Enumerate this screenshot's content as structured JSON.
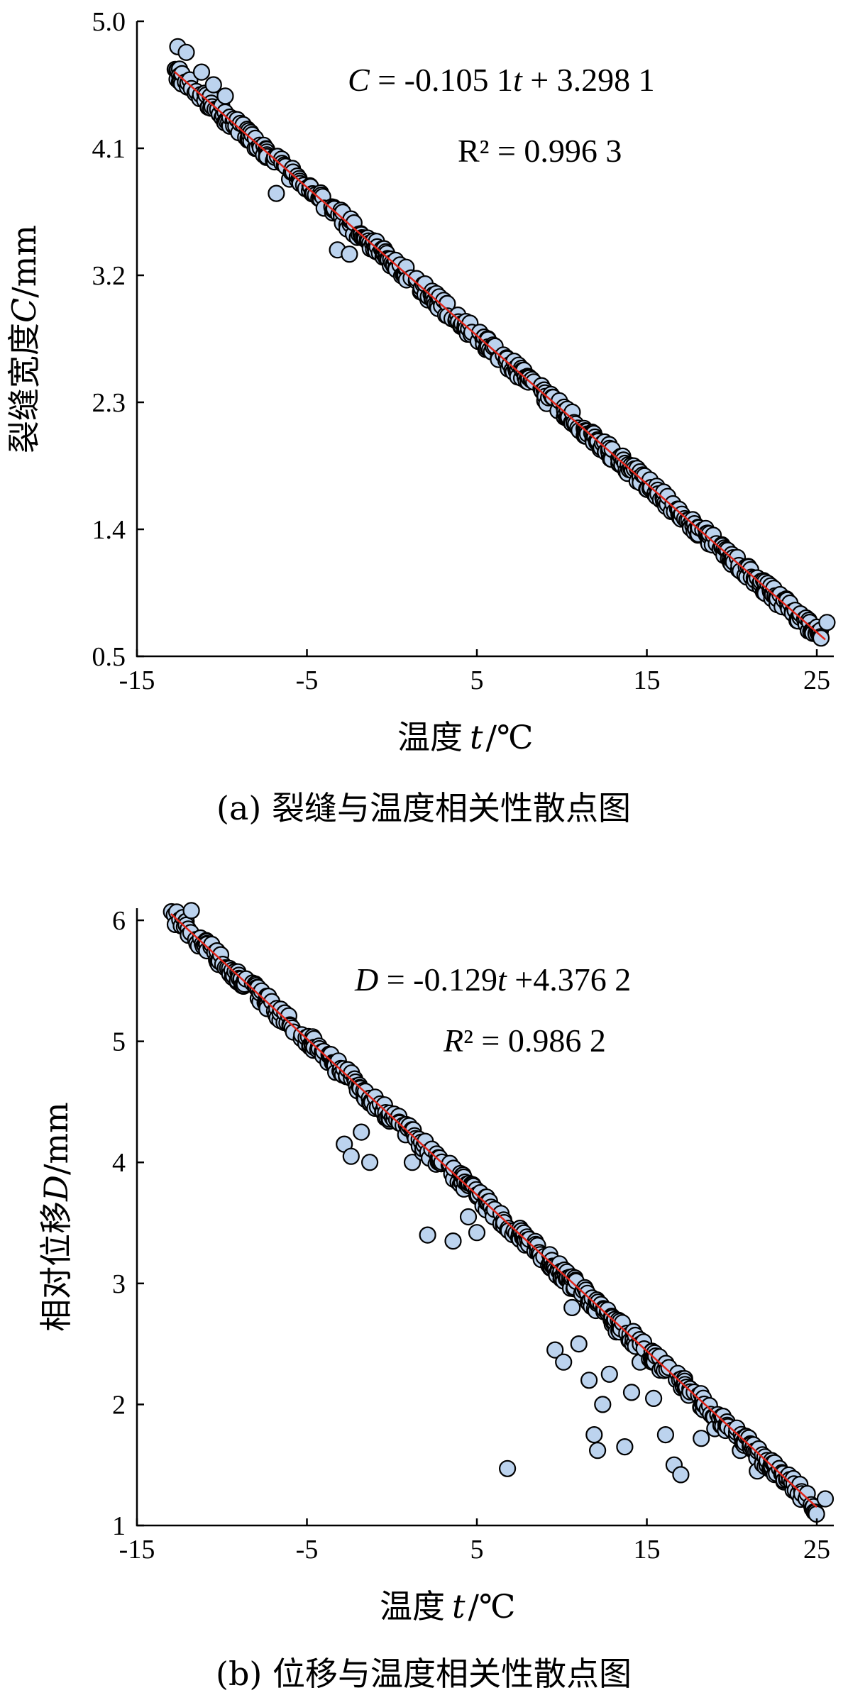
{
  "chart_data": [
    {
      "type": "scatter",
      "caption": "(a) 裂缝与温度相关性散点图",
      "xlabel_main": "温度",
      "xlabel_var": "t",
      "xlabel_unit": "/℃",
      "ylabel_main": "裂缝宽度",
      "ylabel_var": "C",
      "ylabel_unit": "/mm",
      "xlim": [
        -15,
        26
      ],
      "ylim": [
        0.5,
        5.0
      ],
      "xticks": [
        -15,
        -5,
        5,
        15,
        25
      ],
      "xtick_labels": [
        "-15",
        "-5",
        "5",
        "15",
        "25"
      ],
      "yticks": [
        0.5,
        1.4,
        2.3,
        3.2,
        4.1,
        5.0
      ],
      "ytick_labels": [
        "0.5",
        "1.4",
        "2.3",
        "3.2",
        "4.1",
        "5.0"
      ],
      "fit": {
        "slope": -0.1051,
        "intercept": 3.2981,
        "x_range": [
          -12.8,
          25.5
        ]
      },
      "equation_lhs": "C",
      "equation_mid": " = -0.105 1",
      "equation_var": "t",
      "equation_rhs": " + 3.298 1",
      "r2_lhs": "R² = 0.996 3",
      "r2_var": "",
      "r2_rhs": "",
      "noise": 0.05,
      "outliers": [
        {
          "x": -12.6,
          "y": 4.82
        },
        {
          "x": -12.1,
          "y": 4.78
        },
        {
          "x": -11.2,
          "y": 4.64
        },
        {
          "x": -10.5,
          "y": 4.55
        },
        {
          "x": -9.8,
          "y": 4.47
        },
        {
          "x": -6.8,
          "y": 3.78
        },
        {
          "x": -3.2,
          "y": 3.38
        },
        {
          "x": -2.5,
          "y": 3.35
        },
        {
          "x": 25.6,
          "y": 0.74
        }
      ],
      "series_color": "#bcd3ee",
      "fit_color": "#e0261b"
    },
    {
      "type": "scatter",
      "caption": "(b) 位移与温度相关性散点图",
      "xlabel_main": "温度",
      "xlabel_var": "t",
      "xlabel_unit": "/℃",
      "ylabel_main": "相对位移",
      "ylabel_var": "D",
      "ylabel_unit": "/mm",
      "xlim": [
        -15,
        26
      ],
      "ylim": [
        1,
        6.1
      ],
      "xticks": [
        -15,
        -5,
        5,
        15,
        25
      ],
      "xtick_labels": [
        "-15",
        "-5",
        "5",
        "15",
        "25"
      ],
      "yticks": [
        1,
        2,
        3,
        4,
        5,
        6
      ],
      "ytick_labels": [
        "1",
        "2",
        "3",
        "4",
        "5",
        "6"
      ],
      "fit": {
        "slope": -0.129,
        "intercept": 4.3762,
        "x_range": [
          -13.0,
          25.0
        ]
      },
      "equation_lhs": "D",
      "equation_mid": " = -0.129",
      "equation_var": "t",
      "equation_rhs": " +4.376 2",
      "r2_lhs": "R",
      "r2_var": "²",
      "r2_rhs": " = 0.986 2",
      "noise": 0.06,
      "outliers": [
        {
          "x": -11.8,
          "y": 6.08
        },
        {
          "x": -2.8,
          "y": 4.15
        },
        {
          "x": -2.4,
          "y": 4.05
        },
        {
          "x": -1.8,
          "y": 4.25
        },
        {
          "x": -1.3,
          "y": 4.0
        },
        {
          "x": 1.2,
          "y": 4.0
        },
        {
          "x": 2.1,
          "y": 3.4
        },
        {
          "x": 3.6,
          "y": 3.35
        },
        {
          "x": 4.5,
          "y": 3.55
        },
        {
          "x": 5.0,
          "y": 3.42
        },
        {
          "x": 6.8,
          "y": 1.47
        },
        {
          "x": 9.6,
          "y": 2.45
        },
        {
          "x": 10.1,
          "y": 2.35
        },
        {
          "x": 10.6,
          "y": 2.8
        },
        {
          "x": 11.0,
          "y": 2.5
        },
        {
          "x": 11.6,
          "y": 2.2
        },
        {
          "x": 11.9,
          "y": 1.75
        },
        {
          "x": 12.1,
          "y": 1.62
        },
        {
          "x": 12.4,
          "y": 2.0
        },
        {
          "x": 12.8,
          "y": 2.25
        },
        {
          "x": 13.2,
          "y": 2.6
        },
        {
          "x": 13.7,
          "y": 1.65
        },
        {
          "x": 14.1,
          "y": 2.1
        },
        {
          "x": 14.6,
          "y": 2.35
        },
        {
          "x": 15.4,
          "y": 2.05
        },
        {
          "x": 16.1,
          "y": 1.75
        },
        {
          "x": 16.6,
          "y": 1.5
        },
        {
          "x": 17.0,
          "y": 1.42
        },
        {
          "x": 18.2,
          "y": 1.72
        },
        {
          "x": 19.0,
          "y": 1.8
        },
        {
          "x": 20.5,
          "y": 1.62
        },
        {
          "x": 21.5,
          "y": 1.45
        },
        {
          "x": 25.5,
          "y": 1.22
        }
      ],
      "series_color": "#bcd3ee",
      "fit_color": "#e0261b"
    }
  ]
}
